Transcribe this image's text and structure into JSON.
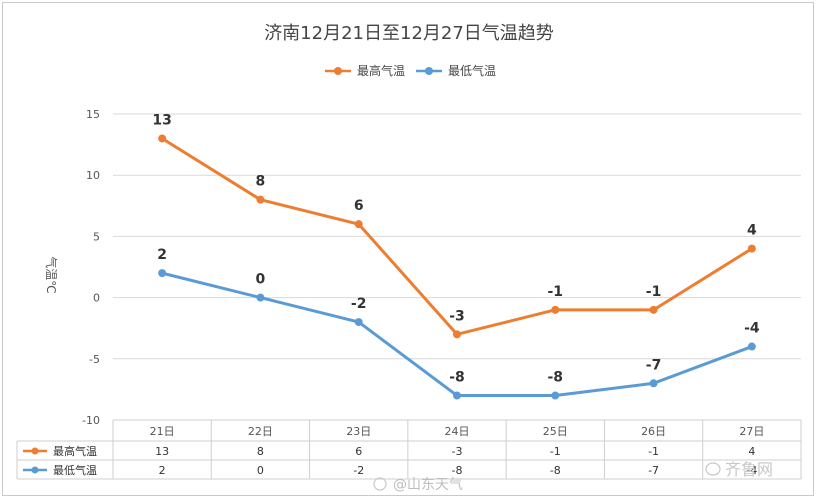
{
  "chart_data": {
    "type": "line",
    "title": "济南12月21日至12月27日气温趋势",
    "ylabel": "气温℃",
    "categories": [
      "21日",
      "22日",
      "23日",
      "24日",
      "25日",
      "26日",
      "27日"
    ],
    "series": [
      {
        "name": "最高气温",
        "color": "#ED7D31",
        "values": [
          13,
          8,
          6,
          -3,
          -1,
          -1,
          4
        ]
      },
      {
        "name": "最低气温",
        "color": "#5B9BD5",
        "values": [
          2,
          0,
          -2,
          -8,
          -8,
          -7,
          -4
        ]
      }
    ],
    "ylim": [
      -10,
      15
    ],
    "yticks": [
      15,
      10,
      5,
      0,
      -5,
      -10
    ],
    "grid": true,
    "legend": "top-center",
    "data_table": true
  },
  "watermarks": {
    "weibo": "@山东天气",
    "site": "齐鲁网"
  }
}
